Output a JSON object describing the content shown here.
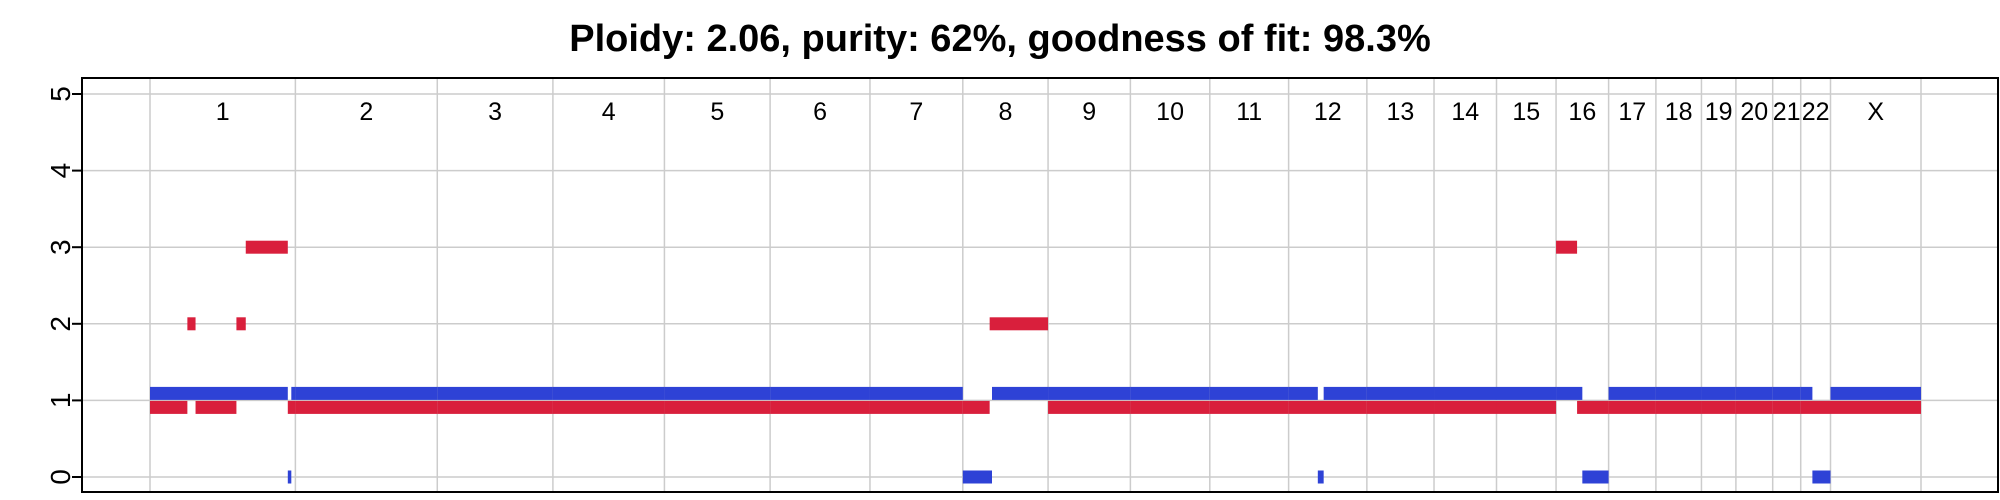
{
  "chart_data": {
    "type": "bar",
    "title": "Ploidy: 2.06, purity: 62%, goodness of fit: 98.3%",
    "xlabel": "",
    "ylabel": "",
    "ylim": [
      0,
      5
    ],
    "yticks": [
      "0",
      "1",
      "2",
      "3",
      "4",
      "5"
    ],
    "grid": true,
    "colors": {
      "major": "#d91f3c",
      "minor": "#2e42d6",
      "grid": "#cccccc"
    },
    "chromosomes": [
      {
        "name": "1",
        "length": 249
      },
      {
        "name": "2",
        "length": 243
      },
      {
        "name": "3",
        "length": 198
      },
      {
        "name": "4",
        "length": 191
      },
      {
        "name": "5",
        "length": 181
      },
      {
        "name": "6",
        "length": 171
      },
      {
        "name": "7",
        "length": 159
      },
      {
        "name": "8",
        "length": 146
      },
      {
        "name": "9",
        "length": 141
      },
      {
        "name": "10",
        "length": 136
      },
      {
        "name": "11",
        "length": 135
      },
      {
        "name": "12",
        "length": 134
      },
      {
        "name": "13",
        "length": 115
      },
      {
        "name": "14",
        "length": 107
      },
      {
        "name": "15",
        "length": 102
      },
      {
        "name": "16",
        "length": 90
      },
      {
        "name": "17",
        "length": 81
      },
      {
        "name": "18",
        "length": 78
      },
      {
        "name": "19",
        "length": 59
      },
      {
        "name": "20",
        "length": 63
      },
      {
        "name": "21",
        "length": 48
      },
      {
        "name": "22",
        "length": 51
      },
      {
        "name": "X",
        "length": 155
      }
    ],
    "series": [
      {
        "id": "major",
        "segments": [
          {
            "chrom": "1",
            "start": 0,
            "end": 64,
            "value": 1
          },
          {
            "chrom": "1",
            "start": 64,
            "end": 78,
            "value": 2
          },
          {
            "chrom": "1",
            "start": 78,
            "end": 148,
            "value": 1
          },
          {
            "chrom": "1",
            "start": 148,
            "end": 164,
            "value": 2
          },
          {
            "chrom": "1",
            "start": 164,
            "end": 236,
            "value": 3
          },
          {
            "chrom": "1",
            "start": 236,
            "end": 249,
            "value": 1
          },
          {
            "chrom": "2",
            "start": 0,
            "end": 243,
            "value": 1
          },
          {
            "chrom": "3",
            "start": 0,
            "end": 198,
            "value": 1
          },
          {
            "chrom": "4",
            "start": 0,
            "end": 191,
            "value": 1
          },
          {
            "chrom": "5",
            "start": 0,
            "end": 181,
            "value": 1
          },
          {
            "chrom": "6",
            "start": 0,
            "end": 171,
            "value": 1
          },
          {
            "chrom": "7",
            "start": 0,
            "end": 159,
            "value": 1
          },
          {
            "chrom": "8",
            "start": 0,
            "end": 46,
            "value": 1
          },
          {
            "chrom": "8",
            "start": 46,
            "end": 146,
            "value": 2
          },
          {
            "chrom": "9",
            "start": 0,
            "end": 141,
            "value": 1
          },
          {
            "chrom": "10",
            "start": 0,
            "end": 136,
            "value": 1
          },
          {
            "chrom": "11",
            "start": 0,
            "end": 135,
            "value": 1
          },
          {
            "chrom": "12",
            "start": 0,
            "end": 134,
            "value": 1
          },
          {
            "chrom": "13",
            "start": 0,
            "end": 115,
            "value": 1
          },
          {
            "chrom": "14",
            "start": 0,
            "end": 107,
            "value": 1
          },
          {
            "chrom": "15",
            "start": 0,
            "end": 102,
            "value": 1
          },
          {
            "chrom": "16",
            "start": 0,
            "end": 36,
            "value": 3
          },
          {
            "chrom": "16",
            "start": 36,
            "end": 90,
            "value": 1
          },
          {
            "chrom": "17",
            "start": 0,
            "end": 81,
            "value": 1
          },
          {
            "chrom": "18",
            "start": 0,
            "end": 78,
            "value": 1
          },
          {
            "chrom": "19",
            "start": 0,
            "end": 59,
            "value": 1
          },
          {
            "chrom": "20",
            "start": 0,
            "end": 63,
            "value": 1
          },
          {
            "chrom": "21",
            "start": 0,
            "end": 48,
            "value": 1
          },
          {
            "chrom": "22",
            "start": 0,
            "end": 51,
            "value": 1
          },
          {
            "chrom": "X",
            "start": 0,
            "end": 155,
            "value": 1
          }
        ]
      },
      {
        "id": "minor",
        "segments": [
          {
            "chrom": "1",
            "start": 0,
            "end": 236,
            "value": 1
          },
          {
            "chrom": "1",
            "start": 236,
            "end": 242,
            "value": 0
          },
          {
            "chrom": "1",
            "start": 242,
            "end": 249,
            "value": 1
          },
          {
            "chrom": "2",
            "start": 0,
            "end": 243,
            "value": 1
          },
          {
            "chrom": "3",
            "start": 0,
            "end": 198,
            "value": 1
          },
          {
            "chrom": "4",
            "start": 0,
            "end": 191,
            "value": 1
          },
          {
            "chrom": "5",
            "start": 0,
            "end": 181,
            "value": 1
          },
          {
            "chrom": "6",
            "start": 0,
            "end": 171,
            "value": 1
          },
          {
            "chrom": "7",
            "start": 0,
            "end": 159,
            "value": 1
          },
          {
            "chrom": "8",
            "start": 0,
            "end": 50,
            "value": 0
          },
          {
            "chrom": "8",
            "start": 50,
            "end": 146,
            "value": 1
          },
          {
            "chrom": "9",
            "start": 0,
            "end": 141,
            "value": 1
          },
          {
            "chrom": "10",
            "start": 0,
            "end": 136,
            "value": 1
          },
          {
            "chrom": "11",
            "start": 0,
            "end": 135,
            "value": 1
          },
          {
            "chrom": "12",
            "start": 0,
            "end": 50,
            "value": 1
          },
          {
            "chrom": "12",
            "start": 50,
            "end": 60,
            "value": 0
          },
          {
            "chrom": "12",
            "start": 60,
            "end": 134,
            "value": 1
          },
          {
            "chrom": "13",
            "start": 0,
            "end": 115,
            "value": 1
          },
          {
            "chrom": "14",
            "start": 0,
            "end": 107,
            "value": 1
          },
          {
            "chrom": "15",
            "start": 0,
            "end": 102,
            "value": 1
          },
          {
            "chrom": "16",
            "start": 0,
            "end": 45,
            "value": 1
          },
          {
            "chrom": "16",
            "start": 45,
            "end": 90,
            "value": 0
          },
          {
            "chrom": "17",
            "start": 0,
            "end": 81,
            "value": 1
          },
          {
            "chrom": "18",
            "start": 0,
            "end": 78,
            "value": 1
          },
          {
            "chrom": "19",
            "start": 0,
            "end": 59,
            "value": 1
          },
          {
            "chrom": "20",
            "start": 0,
            "end": 63,
            "value": 1
          },
          {
            "chrom": "21",
            "start": 0,
            "end": 48,
            "value": 1
          },
          {
            "chrom": "22",
            "start": 0,
            "end": 20,
            "value": 1
          },
          {
            "chrom": "22",
            "start": 20,
            "end": 51,
            "value": 0
          },
          {
            "chrom": "X",
            "start": 0,
            "end": 155,
            "value": 1
          }
        ]
      }
    ]
  }
}
